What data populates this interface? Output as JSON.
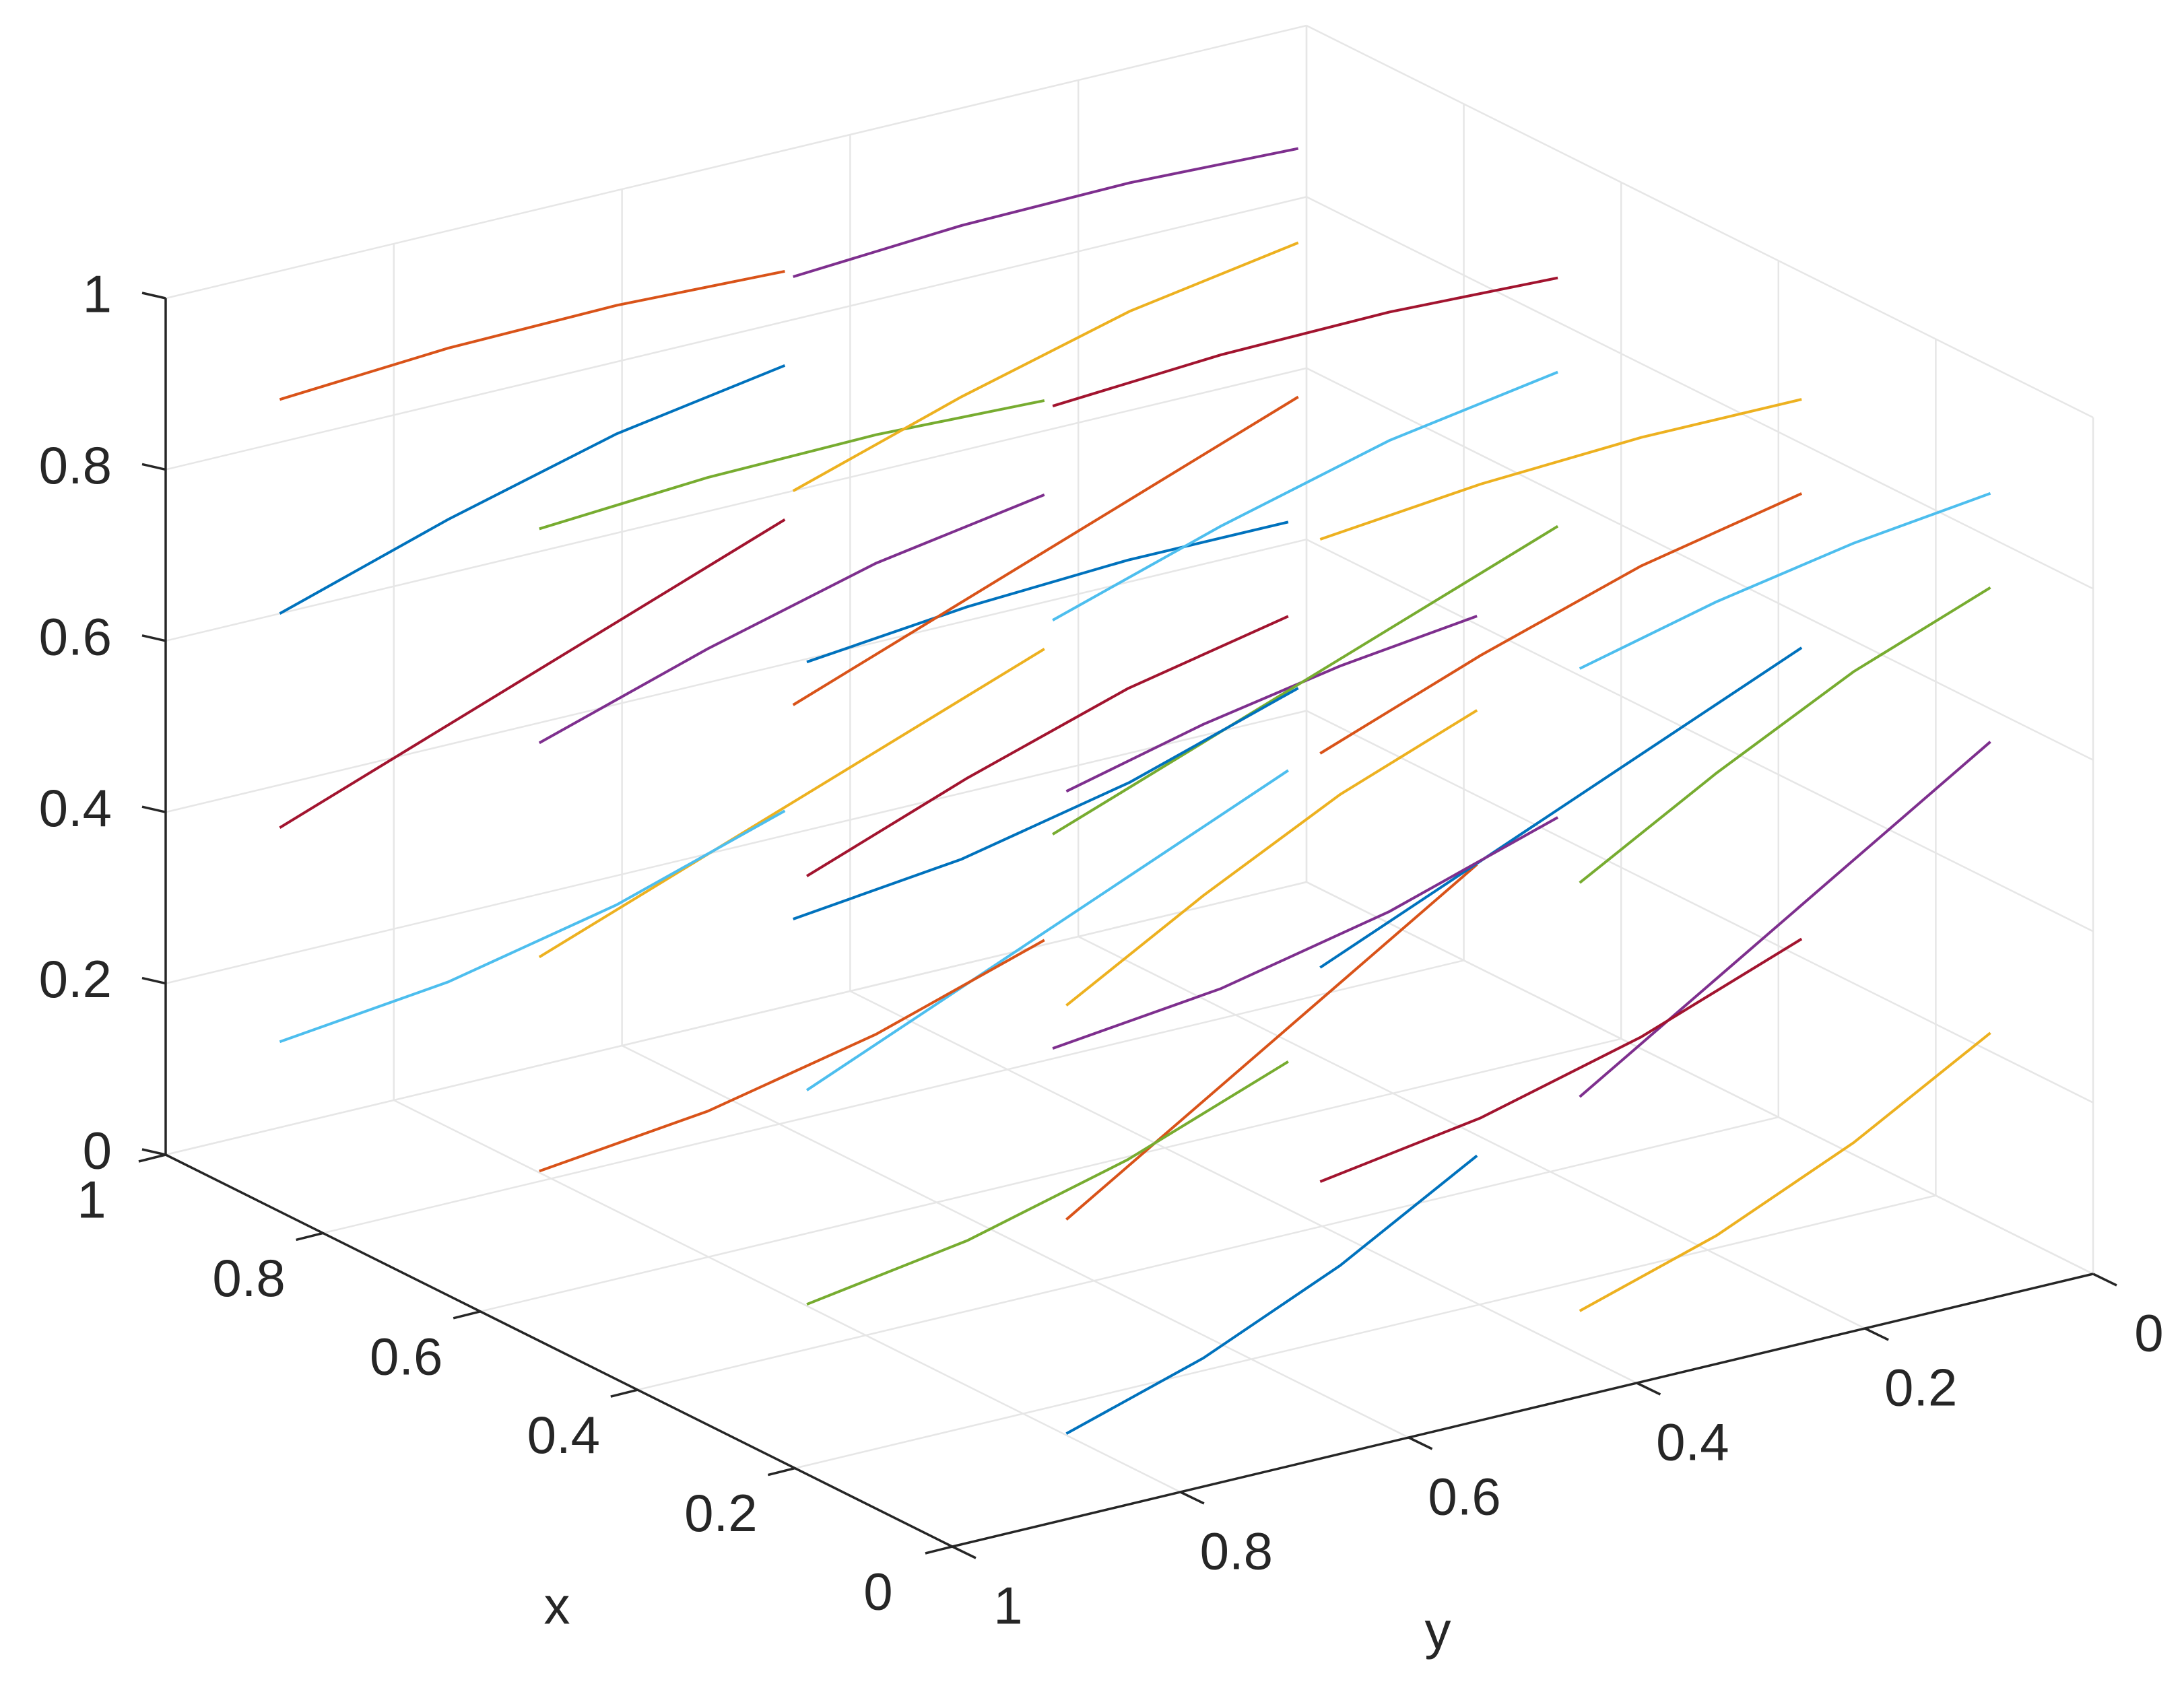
{
  "chart_data": {
    "type": "line3d",
    "xlabel": "x",
    "ylabel": "y",
    "xlim": [
      0,
      1
    ],
    "ylim": [
      0,
      1
    ],
    "zlim": [
      0,
      1
    ],
    "xticks": [
      0,
      0.2,
      0.4,
      0.6,
      0.8,
      1
    ],
    "yticks": [
      0,
      0.2,
      0.4,
      0.6,
      0.8,
      1
    ],
    "zticks": [
      0,
      0.2,
      0.4,
      0.6,
      0.8,
      1
    ],
    "grid": true,
    "series": [
      {
        "color": "#0072bd",
        "x": [
          0,
          0,
          0,
          0
        ],
        "y": [
          0.9,
          0.78,
          0.66,
          0.54
        ],
        "z": [
          0.1,
          0.15,
          0.22,
          0.31
        ]
      },
      {
        "color": "#d95319",
        "x": [
          0,
          0,
          0,
          0
        ],
        "y": [
          0.9,
          0.78,
          0.66,
          0.54
        ],
        "z": [
          0.35,
          0.45,
          0.55,
          0.65
        ]
      },
      {
        "color": "#edb120",
        "x": [
          0,
          0,
          0,
          0
        ],
        "y": [
          0.9,
          0.78,
          0.66,
          0.54
        ],
        "z": [
          0.6,
          0.69,
          0.77,
          0.83
        ]
      },
      {
        "color": "#7e2f8e",
        "x": [
          0,
          0,
          0,
          0
        ],
        "y": [
          0.9,
          0.78,
          0.66,
          0.54
        ],
        "z": [
          0.85,
          0.89,
          0.92,
          0.94
        ]
      },
      {
        "color": "#77ac30",
        "x": [
          0.33,
          0.3,
          0.27,
          0.24
        ],
        "y": [
          0.9,
          0.78,
          0.66,
          0.54
        ],
        "z": [
          0.1,
          0.15,
          0.22,
          0.31
        ]
      },
      {
        "color": "#4dbeee",
        "x": [
          0.33,
          0.3,
          0.27,
          0.24
        ],
        "y": [
          0.9,
          0.78,
          0.66,
          0.54
        ],
        "z": [
          0.35,
          0.45,
          0.55,
          0.65
        ]
      },
      {
        "color": "#a2142f",
        "x": [
          0.33,
          0.3,
          0.27,
          0.24
        ],
        "y": [
          0.9,
          0.78,
          0.66,
          0.54
        ],
        "z": [
          0.6,
          0.69,
          0.77,
          0.83
        ]
      },
      {
        "color": "#0072bd",
        "x": [
          0.33,
          0.3,
          0.27,
          0.24
        ],
        "y": [
          0.9,
          0.78,
          0.66,
          0.54
        ],
        "z": [
          0.85,
          0.89,
          0.92,
          0.94
        ]
      },
      {
        "color": "#d95319",
        "x": [
          0.67,
          0.63,
          0.59,
          0.55
        ],
        "y": [
          0.9,
          0.78,
          0.66,
          0.54
        ],
        "z": [
          0.1,
          0.15,
          0.22,
          0.31
        ]
      },
      {
        "color": "#edb120",
        "x": [
          0.67,
          0.63,
          0.59,
          0.55
        ],
        "y": [
          0.9,
          0.78,
          0.66,
          0.54
        ],
        "z": [
          0.35,
          0.45,
          0.55,
          0.65
        ]
      },
      {
        "color": "#7e2f8e",
        "x": [
          0.67,
          0.63,
          0.59,
          0.55
        ],
        "y": [
          0.9,
          0.78,
          0.66,
          0.54
        ],
        "z": [
          0.6,
          0.69,
          0.77,
          0.83
        ]
      },
      {
        "color": "#77ac30",
        "x": [
          0.67,
          0.63,
          0.59,
          0.55
        ],
        "y": [
          0.9,
          0.78,
          0.66,
          0.54
        ],
        "z": [
          0.85,
          0.89,
          0.92,
          0.94
        ]
      },
      {
        "color": "#4dbeee",
        "x": [
          1,
          0.96,
          0.92,
          0.88
        ],
        "y": [
          0.9,
          0.78,
          0.66,
          0.54
        ],
        "z": [
          0.1,
          0.15,
          0.22,
          0.31
        ]
      },
      {
        "color": "#a2142f",
        "x": [
          1,
          0.96,
          0.92,
          0.88
        ],
        "y": [
          0.9,
          0.78,
          0.66,
          0.54
        ],
        "z": [
          0.35,
          0.45,
          0.55,
          0.65
        ]
      },
      {
        "color": "#0072bd",
        "x": [
          1,
          0.96,
          0.92,
          0.88
        ],
        "y": [
          0.9,
          0.78,
          0.66,
          0.54
        ],
        "z": [
          0.6,
          0.69,
          0.77,
          0.83
        ]
      },
      {
        "color": "#d95319",
        "x": [
          1,
          0.96,
          0.92,
          0.88
        ],
        "y": [
          0.9,
          0.78,
          0.66,
          0.54
        ],
        "z": [
          0.85,
          0.89,
          0.92,
          0.94
        ]
      },
      {
        "color": "#edb120",
        "x": [
          0,
          0,
          0,
          0
        ],
        "y": [
          0.45,
          0.33,
          0.21,
          0.09
        ],
        "z": [
          0.1,
          0.15,
          0.22,
          0.31
        ]
      },
      {
        "color": "#7e2f8e",
        "x": [
          0,
          0,
          0,
          0
        ],
        "y": [
          0.45,
          0.33,
          0.21,
          0.09
        ],
        "z": [
          0.35,
          0.45,
          0.55,
          0.65
        ]
      },
      {
        "color": "#77ac30",
        "x": [
          0,
          0,
          0,
          0
        ],
        "y": [
          0.45,
          0.33,
          0.21,
          0.09
        ],
        "z": [
          0.6,
          0.69,
          0.77,
          0.83
        ]
      },
      {
        "color": "#4dbeee",
        "x": [
          0,
          0,
          0,
          0
        ],
        "y": [
          0.45,
          0.33,
          0.21,
          0.09
        ],
        "z": [
          0.85,
          0.89,
          0.92,
          0.94
        ]
      },
      {
        "color": "#a2142f",
        "x": [
          0.33,
          0.3,
          0.27,
          0.24
        ],
        "y": [
          0.45,
          0.33,
          0.21,
          0.09
        ],
        "z": [
          0.1,
          0.15,
          0.22,
          0.31
        ]
      },
      {
        "color": "#0072bd",
        "x": [
          0.33,
          0.3,
          0.27,
          0.24
        ],
        "y": [
          0.45,
          0.33,
          0.21,
          0.09
        ],
        "z": [
          0.35,
          0.45,
          0.55,
          0.65
        ]
      },
      {
        "color": "#d95319",
        "x": [
          0.33,
          0.3,
          0.27,
          0.24
        ],
        "y": [
          0.45,
          0.33,
          0.21,
          0.09
        ],
        "z": [
          0.6,
          0.69,
          0.77,
          0.83
        ]
      },
      {
        "color": "#edb120",
        "x": [
          0.33,
          0.3,
          0.27,
          0.24
        ],
        "y": [
          0.45,
          0.33,
          0.21,
          0.09
        ],
        "z": [
          0.85,
          0.89,
          0.92,
          0.94
        ]
      },
      {
        "color": "#7e2f8e",
        "x": [
          0.67,
          0.63,
          0.59,
          0.55
        ],
        "y": [
          0.45,
          0.33,
          0.21,
          0.09
        ],
        "z": [
          0.1,
          0.15,
          0.22,
          0.31
        ]
      },
      {
        "color": "#77ac30",
        "x": [
          0.67,
          0.63,
          0.59,
          0.55
        ],
        "y": [
          0.45,
          0.33,
          0.21,
          0.09
        ],
        "z": [
          0.35,
          0.45,
          0.55,
          0.65
        ]
      },
      {
        "color": "#4dbeee",
        "x": [
          0.67,
          0.63,
          0.59,
          0.55
        ],
        "y": [
          0.45,
          0.33,
          0.21,
          0.09
        ],
        "z": [
          0.6,
          0.69,
          0.77,
          0.83
        ]
      },
      {
        "color": "#a2142f",
        "x": [
          0.67,
          0.63,
          0.59,
          0.55
        ],
        "y": [
          0.45,
          0.33,
          0.21,
          0.09
        ],
        "z": [
          0.85,
          0.89,
          0.92,
          0.94
        ]
      },
      {
        "color": "#0072bd",
        "x": [
          1,
          0.96,
          0.92,
          0.88
        ],
        "y": [
          0.45,
          0.33,
          0.21,
          0.09
        ],
        "z": [
          0.1,
          0.15,
          0.22,
          0.31
        ]
      },
      {
        "color": "#d95319",
        "x": [
          1,
          0.96,
          0.92,
          0.88
        ],
        "y": [
          0.45,
          0.33,
          0.21,
          0.09
        ],
        "z": [
          0.35,
          0.45,
          0.55,
          0.65
        ]
      },
      {
        "color": "#edb120",
        "x": [
          1,
          0.96,
          0.92,
          0.88
        ],
        "y": [
          0.45,
          0.33,
          0.21,
          0.09
        ],
        "z": [
          0.6,
          0.69,
          0.77,
          0.83
        ]
      },
      {
        "color": "#7e2f8e",
        "x": [
          1,
          0.96,
          0.92,
          0.88
        ],
        "y": [
          0.45,
          0.33,
          0.21,
          0.09
        ],
        "z": [
          0.85,
          0.89,
          0.92,
          0.94
        ]
      }
    ]
  }
}
